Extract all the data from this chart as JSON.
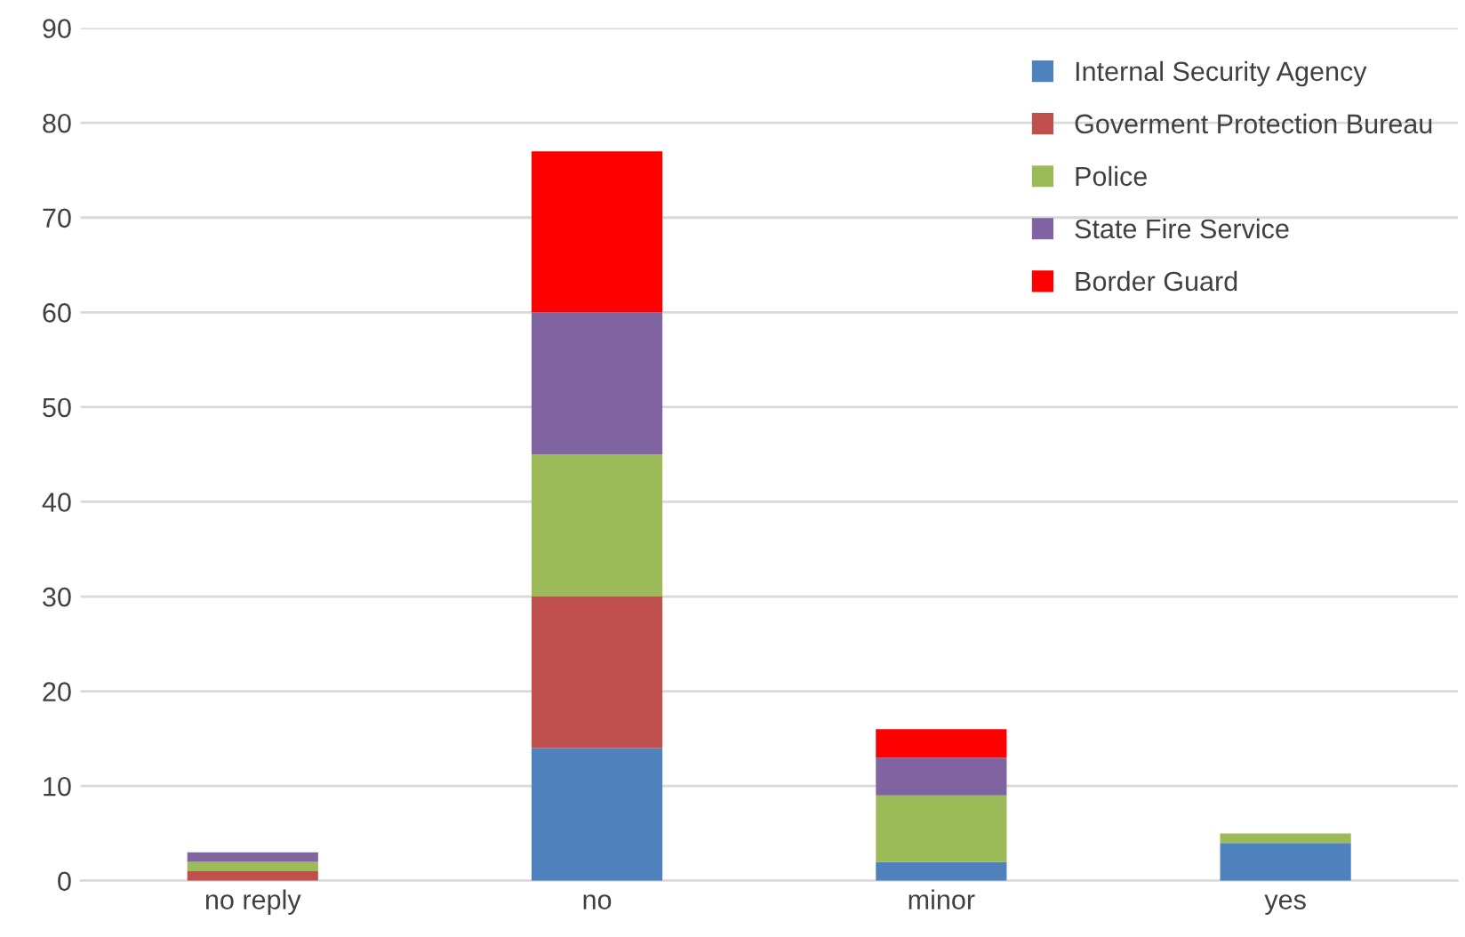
{
  "chart_data": {
    "type": "bar",
    "stacked": true,
    "categories": [
      "no reply",
      "no",
      "minor",
      "yes"
    ],
    "series": [
      {
        "name": "Internal Security Agency",
        "color": "#4f81bd",
        "values": [
          0,
          14,
          2,
          4
        ]
      },
      {
        "name": "Goverment Protection Bureau",
        "color": "#c0504d",
        "values": [
          1,
          16,
          0,
          0
        ]
      },
      {
        "name": "Police",
        "color": "#9bbb59",
        "values": [
          1,
          15,
          7,
          1
        ]
      },
      {
        "name": "State Fire Service",
        "color": "#8064a2",
        "values": [
          1,
          15,
          4,
          0
        ]
      },
      {
        "name": "Border Guard",
        "color": "#ff0000",
        "values": [
          0,
          17,
          3,
          0
        ]
      }
    ],
    "ylim": [
      0,
      90
    ],
    "yticks": [
      0,
      10,
      20,
      30,
      40,
      50,
      60,
      70,
      80,
      90
    ],
    "grid": "y",
    "legend": "top right"
  }
}
